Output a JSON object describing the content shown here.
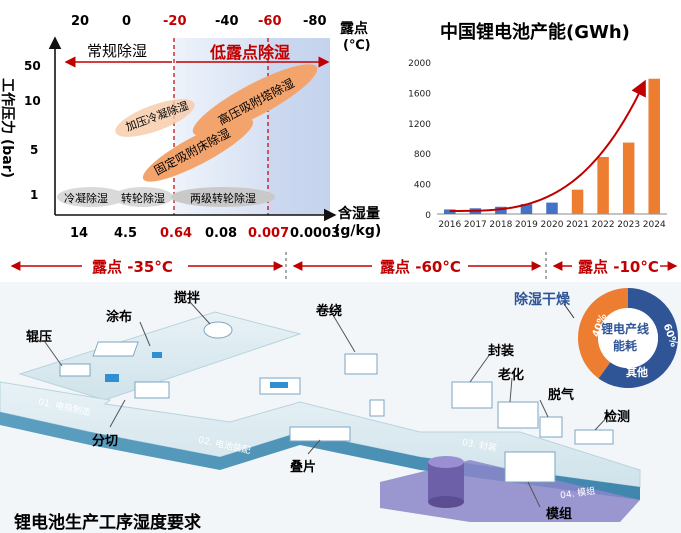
{
  "dew_chart": {
    "top_ticks": [
      "20",
      "0",
      "-20",
      "-40",
      "-60",
      "-80"
    ],
    "top_ticks_red": [
      false,
      false,
      true,
      false,
      true,
      false
    ],
    "dew_label": "露点",
    "dew_unit": "(℃)",
    "y_label": "工作压力 (bar)",
    "y_ticks": [
      "50",
      "10",
      "5",
      "1"
    ],
    "bottom_ticks": [
      "14",
      "4.5",
      "0.64",
      "0.08",
      "0.007",
      "0.0003"
    ],
    "bottom_ticks_red": [
      false,
      false,
      true,
      false,
      true,
      false
    ],
    "x_label": "含湿量",
    "x_unit": "(g/kg)",
    "region_normal": "常规除湿",
    "region_low": "低露点除湿",
    "methods": [
      "加压冷凝除湿",
      "高压吸附塔除湿",
      "固定吸附床除湿",
      "冷凝除湿",
      "转轮除湿",
      "两级转轮除湿"
    ]
  },
  "capacity_chart": {
    "title": "中国锂电池产能(GWh)",
    "chart_data": {
      "type": "bar",
      "title": "中国锂电池产能(GWh)",
      "categories": [
        "2016",
        "2017",
        "2018",
        "2019",
        "2020",
        "2021",
        "2022",
        "2023",
        "2024"
      ],
      "values": [
        60,
        75,
        95,
        130,
        150,
        320,
        750,
        940,
        1780
      ],
      "bar_colors": [
        "#4472c4",
        "#4472c4",
        "#4472c4",
        "#4472c4",
        "#4472c4",
        "#ed7d31",
        "#ed7d31",
        "#ed7d31",
        "#ed7d31"
      ],
      "y_ticks": [
        0,
        400,
        800,
        1200,
        1600,
        2000
      ],
      "ylim": [
        0,
        2000
      ],
      "trend_color": "#c00000"
    }
  },
  "dew_bands": [
    {
      "label": "露点 -35°C"
    },
    {
      "label": "露点 -60°C"
    },
    {
      "label": "露点 -10°C"
    }
  ],
  "process": {
    "steps": [
      "搅拌",
      "涂布",
      "辊压",
      "分切",
      "卷绕",
      "封装",
      "老化",
      "脱气",
      "检测",
      "叠片",
      "模组"
    ],
    "zones": [
      "01. 电极制造",
      "02. 电池装配",
      "03. 封装",
      "04. 模组"
    ],
    "title": "锂电池生产工序湿度要求"
  },
  "energy_donut": {
    "heading": "除湿干燥",
    "center": [
      "锂电产线",
      "能耗"
    ],
    "chart_data": {
      "type": "pie",
      "slices": [
        {
          "label": "除湿干燥",
          "value": 40,
          "text": "40%",
          "color": "#ed7d31"
        },
        {
          "label": "其他",
          "value": 60,
          "text": "60%",
          "color": "#2f5597"
        }
      ]
    }
  }
}
